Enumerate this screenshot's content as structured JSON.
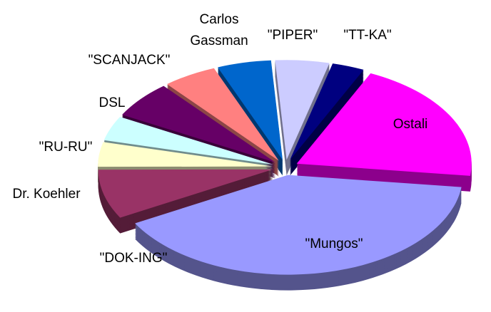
{
  "chart_data": {
    "type": "pie3d",
    "categories": [
      "Ostali",
      "\"Mungos\"",
      "\"DOK-ING\"",
      "Dr. Koehler",
      "\"RU-RU\"",
      "DSL",
      "\"SCANJACK\"",
      "Carlos Gassman",
      "\"PIPER\"",
      "\"TT-KA\""
    ],
    "values": [
      20,
      40,
      8,
      4,
      4,
      6,
      5,
      5,
      5,
      3
    ],
    "colors": [
      "#ff00ff",
      "#9999ff",
      "#993366",
      "#ffffcc",
      "#ccffff",
      "#660066",
      "#ff8080",
      "#0066cc",
      "#ccccff",
      "#000080"
    ]
  }
}
